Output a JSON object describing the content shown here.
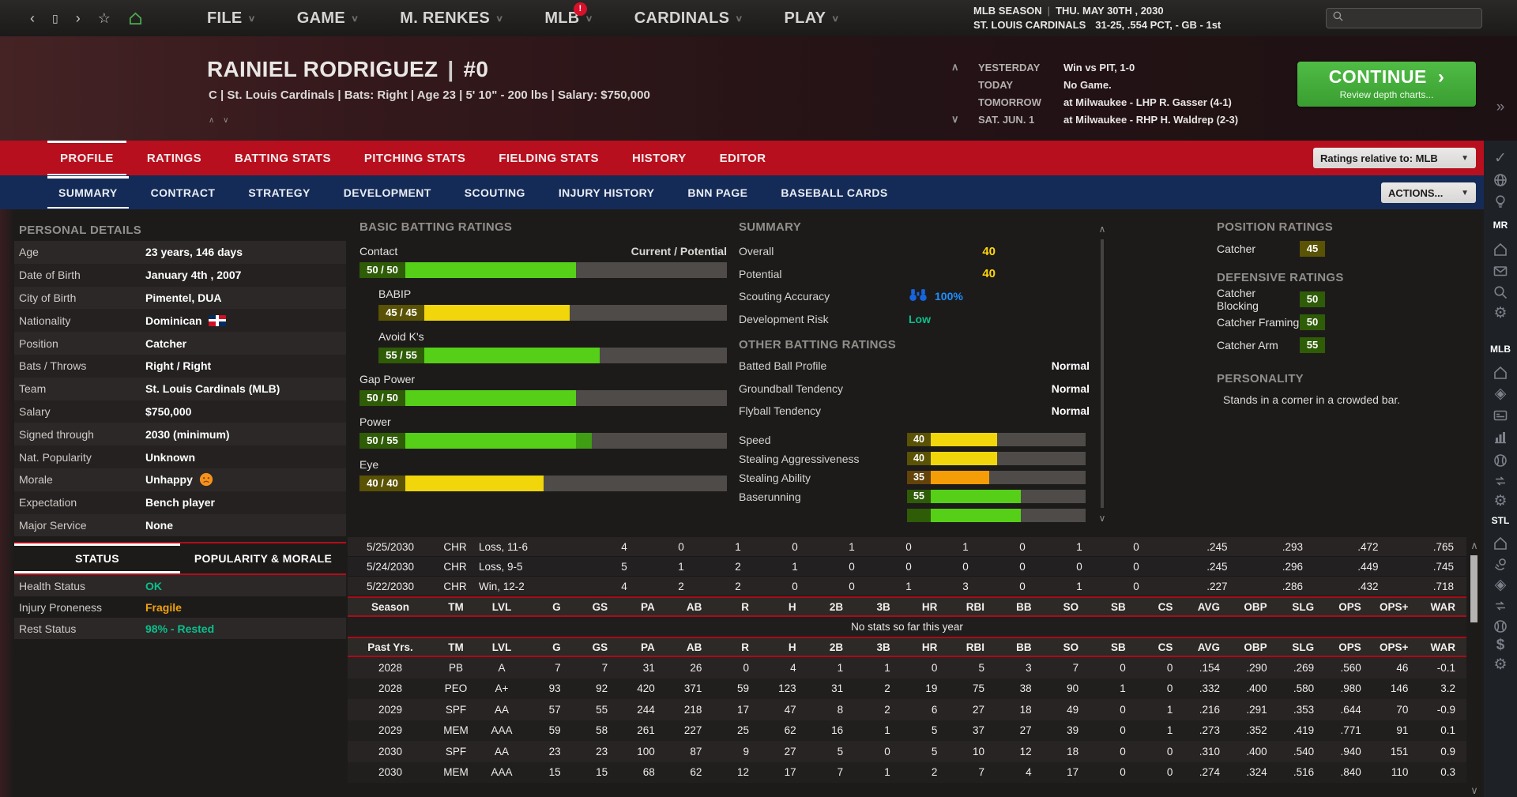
{
  "colors": {
    "accent_red": "#b80f1e",
    "navy_bar": "#152b57",
    "continue_green": "#46b13c",
    "rating_green": "#55cf17",
    "rating_yellow": "#f0d60a",
    "rating_orange": "#f59d07",
    "value_yellow": "#ffd60a",
    "scout_blue": "#1e90ff",
    "positive_teal": "#0ac08b",
    "warning_orange": "#f0a10c"
  },
  "topbar": {
    "menus": [
      {
        "label": "FILE"
      },
      {
        "label": "GAME"
      },
      {
        "label": "M. RENKES"
      },
      {
        "label": "MLB",
        "badge": "!"
      },
      {
        "label": "CARDINALS"
      },
      {
        "label": "PLAY"
      }
    ],
    "season_label": "MLB SEASON",
    "date_label": "THU. MAY 30TH , 2030",
    "team_label": "ST. LOUIS CARDINALS",
    "record_label": "31-25, .554 PCT, - GB - 1st",
    "search_value": ""
  },
  "header": {
    "player_name": "RAINIEL RODRIGUEZ",
    "name_separator": "|",
    "jersey_number": "#0",
    "info_line": "C | St. Louis Cardinals | Bats: Right | Age 23 | 5' 10\" - 200 lbs | Salary: $750,000",
    "schedule": [
      {
        "label": "YESTERDAY",
        "value": "Win vs PIT, 1-0",
        "chevron": "up"
      },
      {
        "label": "TODAY",
        "value": "No Game.",
        "chevron": ""
      },
      {
        "label": "TOMORROW",
        "value": "at Milwaukee - LHP R. Gasser (4-1)",
        "chevron": ""
      },
      {
        "label": "SAT. JUN. 1",
        "value": "at Milwaukee - RHP H. Waldrep (2-3)",
        "chevron": "down"
      }
    ],
    "continue_button": {
      "label": "CONTINUE",
      "arrow": "›",
      "sub": "Review depth charts..."
    }
  },
  "main_tabs": {
    "active": "PROFILE",
    "items": [
      "PROFILE",
      "RATINGS",
      "BATTING STATS",
      "PITCHING STATS",
      "FIELDING STATS",
      "HISTORY",
      "EDITOR"
    ],
    "ratings_dropdown": "Ratings relative to: MLB"
  },
  "sub_tabs": {
    "active": "SUMMARY",
    "items": [
      "SUMMARY",
      "CONTRACT",
      "STRATEGY",
      "DEVELOPMENT",
      "SCOUTING",
      "INJURY HISTORY",
      "BNN PAGE",
      "BASEBALL CARDS"
    ],
    "actions_button": "ACTIONS..."
  },
  "personal": {
    "title": "PERSONAL DETAILS",
    "rows": [
      {
        "label": "Age",
        "value": "23 years, 146 days"
      },
      {
        "label": "Date of Birth",
        "value": "January 4th , 2007"
      },
      {
        "label": "City of Birth",
        "value": "Pimentel, DUA"
      },
      {
        "label": "Nationality",
        "value": "Dominican",
        "flag": "dominican-republic"
      },
      {
        "label": "Position",
        "value": "Catcher"
      },
      {
        "label": "Bats / Throws",
        "value": "Right / Right"
      },
      {
        "label": "Team",
        "value": "St. Louis Cardinals (MLB)"
      },
      {
        "label": "Salary",
        "value": "$750,000"
      },
      {
        "label": "Signed through",
        "value": "2030 (minimum)"
      },
      {
        "label": "Nat. Popularity",
        "value": "Unknown"
      },
      {
        "label": "Morale",
        "value": "Unhappy",
        "emoji": "frowning-face"
      },
      {
        "label": "Expectation",
        "value": "Bench player"
      },
      {
        "label": "Major Service",
        "value": "None"
      }
    ]
  },
  "status": {
    "tabs": [
      "STATUS",
      "POPULARITY & MORALE"
    ],
    "active": "STATUS",
    "rows": [
      {
        "label": "Health Status",
        "value": "OK",
        "color": "#0ac08b"
      },
      {
        "label": "Injury Proneness",
        "value": "Fragile",
        "color": "#f0a10c"
      },
      {
        "label": "Rest Status",
        "value": "98% - Rested",
        "color": "#0ac08b"
      }
    ]
  },
  "batting": {
    "title": "BASIC BATTING RATINGS",
    "first_label": "Contact",
    "legend": "Current / Potential",
    "bars": [
      {
        "label": "Contact",
        "display": "50 / 50",
        "current": 50,
        "potential": 50,
        "color": "green",
        "indent": false
      },
      {
        "label": "BABIP",
        "display": "45 / 45",
        "current": 45,
        "potential": 45,
        "color": "yellow",
        "indent": true
      },
      {
        "label": "Avoid K's",
        "display": "55 / 55",
        "current": 55,
        "potential": 55,
        "color": "green",
        "indent": true
      },
      {
        "label": "Gap Power",
        "display": "50 / 50",
        "current": 50,
        "potential": 50,
        "color": "green",
        "indent": false
      },
      {
        "label": "Power",
        "display": "50 / 55",
        "current": 50,
        "potential": 55,
        "color": "green",
        "indent": false
      },
      {
        "label": "Eye",
        "display": "40 / 40",
        "current": 40,
        "potential": 40,
        "color": "yellow",
        "indent": false
      }
    ]
  },
  "summary": {
    "title": "SUMMARY",
    "overall_label": "Overall",
    "overall_value": "40",
    "potential_label": "Potential",
    "potential_value": "40",
    "scouting_label": "Scouting Accuracy",
    "scouting_value": "100%",
    "devrisk_label": "Development Risk",
    "devrisk_value": "Low",
    "other_title": "OTHER BATTING RATINGS",
    "tendencies": [
      {
        "label": "Batted Ball Profile",
        "value": "Normal"
      },
      {
        "label": "Groundball Tendency",
        "value": "Normal"
      },
      {
        "label": "Flyball Tendency",
        "value": "Normal"
      }
    ],
    "bars": [
      {
        "label": "Speed",
        "value": 40,
        "color": "yellow"
      },
      {
        "label": "Stealing Aggressiveness",
        "value": 40,
        "color": "yellow"
      },
      {
        "label": "Stealing Ability",
        "value": 35,
        "color": "orange"
      },
      {
        "label": "Baserunning",
        "value": 55,
        "color": "green"
      },
      {
        "label": "",
        "value": 55,
        "color": "green"
      }
    ]
  },
  "position": {
    "title": "POSITION RATINGS",
    "bars": [
      {
        "label": "Catcher",
        "value": 45,
        "color": "yellow"
      }
    ],
    "def_title": "DEFENSIVE RATINGS",
    "def_bars": [
      {
        "label": "Catcher Blocking",
        "value": 50,
        "color": "green"
      },
      {
        "label": "Catcher Framing",
        "value": 50,
        "color": "green"
      },
      {
        "label": "Catcher Arm",
        "value": 55,
        "color": "green"
      }
    ],
    "personality_title": "PERSONALITY",
    "personality_text": "Stands in a corner in a crowded bar."
  },
  "stats": {
    "game_log": [
      {
        "date": "5/25/2030",
        "team": "CHR",
        "result": "Loss, 11-6",
        "vals": [
          "4",
          "0",
          "1",
          "0",
          "1",
          "0",
          "1",
          "0",
          "1",
          "0",
          ".245",
          ".293",
          ".472",
          ".765"
        ]
      },
      {
        "date": "5/24/2030",
        "team": "CHR",
        "result": "Loss, 9-5",
        "vals": [
          "5",
          "1",
          "2",
          "1",
          "0",
          "0",
          "0",
          "0",
          "0",
          "0",
          ".245",
          ".296",
          ".449",
          ".745"
        ]
      },
      {
        "date": "5/22/2030",
        "team": "CHR",
        "result": "Win, 12-2",
        "vals": [
          "4",
          "2",
          "2",
          "0",
          "0",
          "1",
          "3",
          "0",
          "1",
          "0",
          ".227",
          ".286",
          ".432",
          ".718"
        ]
      }
    ],
    "season_header": [
      "Season",
      "TM",
      "LVL",
      "G",
      "GS",
      "PA",
      "AB",
      "R",
      "H",
      "2B",
      "3B",
      "HR",
      "RBI",
      "BB",
      "SO",
      "SB",
      "CS",
      "AVG",
      "OBP",
      "SLG",
      "OPS",
      "OPS+",
      "WAR"
    ],
    "no_stats_message": "No stats so far this year",
    "past_header": [
      "Past Yrs.",
      "TM",
      "LVL",
      "G",
      "GS",
      "PA",
      "AB",
      "R",
      "H",
      "2B",
      "3B",
      "HR",
      "RBI",
      "BB",
      "SO",
      "SB",
      "CS",
      "AVG",
      "OBP",
      "SLG",
      "OPS",
      "OPS+",
      "WAR"
    ],
    "past_rows": [
      {
        "season": "2028",
        "tm": "PB",
        "lvl": "A",
        "vals": [
          "7",
          "7",
          "31",
          "26",
          "0",
          "4",
          "1",
          "1",
          "0",
          "5",
          "3",
          "7",
          "0",
          "0",
          ".154",
          ".290",
          ".269",
          ".560",
          "46",
          "-0.1"
        ]
      },
      {
        "season": "2028",
        "tm": "PEO",
        "lvl": "A+",
        "vals": [
          "93",
          "92",
          "420",
          "371",
          "59",
          "123",
          "31",
          "2",
          "19",
          "75",
          "38",
          "90",
          "1",
          "0",
          ".332",
          ".400",
          ".580",
          ".980",
          "146",
          "3.2"
        ]
      },
      {
        "season": "2029",
        "tm": "SPF",
        "lvl": "AA",
        "vals": [
          "57",
          "55",
          "244",
          "218",
          "17",
          "47",
          "8",
          "2",
          "6",
          "27",
          "18",
          "49",
          "0",
          "1",
          ".216",
          ".291",
          ".353",
          ".644",
          "70",
          "-0.9"
        ]
      },
      {
        "season": "2029",
        "tm": "MEM",
        "lvl": "AAA",
        "vals": [
          "59",
          "58",
          "261",
          "227",
          "25",
          "62",
          "16",
          "1",
          "5",
          "37",
          "27",
          "39",
          "0",
          "1",
          ".273",
          ".352",
          ".419",
          ".771",
          "91",
          "0.1"
        ]
      },
      {
        "season": "2030",
        "tm": "SPF",
        "lvl": "AA",
        "vals": [
          "23",
          "23",
          "100",
          "87",
          "9",
          "27",
          "5",
          "0",
          "5",
          "10",
          "12",
          "18",
          "0",
          "0",
          ".310",
          ".400",
          ".540",
          ".940",
          "151",
          "0.9"
        ]
      },
      {
        "season": "2030",
        "tm": "MEM",
        "lvl": "AAA",
        "vals": [
          "15",
          "15",
          "68",
          "62",
          "12",
          "17",
          "7",
          "1",
          "2",
          "7",
          "4",
          "17",
          "0",
          "0",
          ".274",
          ".324",
          ".516",
          ".840",
          "110",
          "0.3"
        ]
      }
    ]
  },
  "sidebar": {
    "items": [
      {
        "icon": "double-chevron-right-icon"
      },
      {
        "icon": "check-icon"
      },
      {
        "icon": "globe-icon"
      },
      {
        "icon": "lightbulb-icon"
      },
      {
        "label": "MR"
      },
      {
        "icon": "home-icon"
      },
      {
        "icon": "mail-icon"
      },
      {
        "icon": "search-icon"
      },
      {
        "icon": "gear-icon"
      },
      {
        "label": "MLB"
      },
      {
        "icon": "home-icon"
      },
      {
        "icon": "field-icon"
      },
      {
        "icon": "card-icon"
      },
      {
        "icon": "chart-icon"
      },
      {
        "icon": "baseball-icon"
      },
      {
        "icon": "trade-icon"
      },
      {
        "icon": "gear-icon"
      },
      {
        "label": "STL"
      },
      {
        "icon": "home-icon"
      },
      {
        "icon": "hand-ball-icon"
      },
      {
        "icon": "field-icon"
      },
      {
        "icon": "trade-icon"
      },
      {
        "icon": "baseball-icon"
      },
      {
        "icon": "dollar-icon"
      },
      {
        "icon": "gear-icon"
      }
    ]
  }
}
